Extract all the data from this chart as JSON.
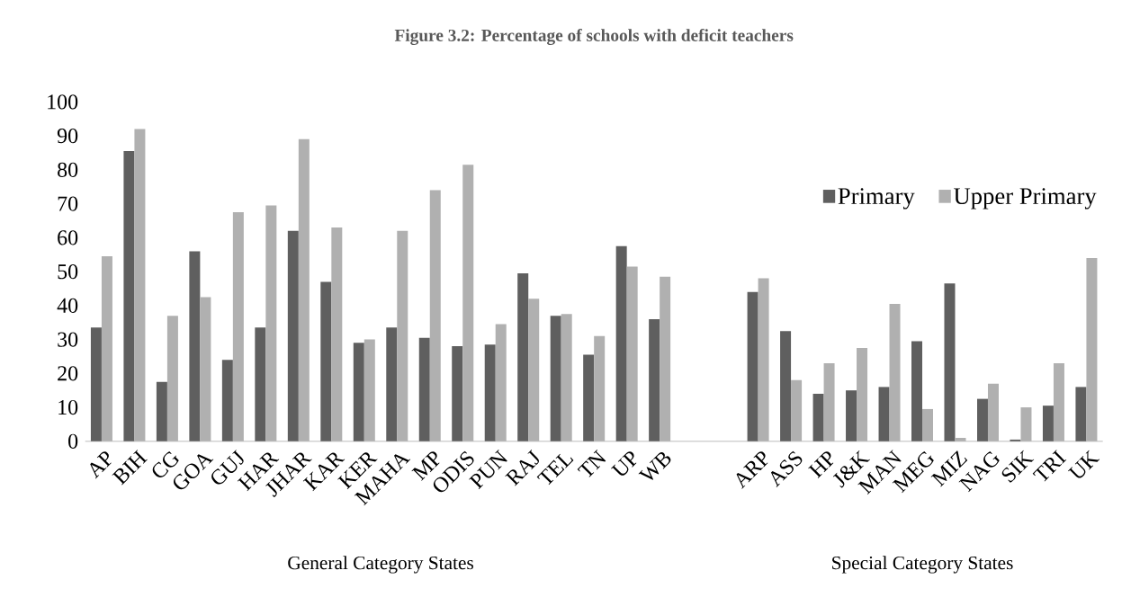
{
  "chart_data": {
    "type": "bar",
    "title": "Figure 3.2: Percentage of schools with deficit teachers",
    "categories": [
      "AP",
      "BIH",
      "CG",
      "GOA",
      "GUJ",
      "HAR",
      "JHAR",
      "KAR",
      "KER",
      "MAHA",
      "MP",
      "ODIS",
      "PUN",
      "RAJ",
      "TEL",
      "TN",
      "UP",
      "WB",
      null,
      null,
      "ARP",
      "ASS",
      "HP",
      "J&K",
      "MAN",
      "MEG",
      "MIZ",
      "NAG",
      "SIK",
      "TRI",
      "UK"
    ],
    "series": [
      {
        "name": "Primary",
        "color": "#5f5f5f",
        "values": [
          33.5,
          85.5,
          17.5,
          56,
          24,
          33.5,
          62,
          47,
          29,
          33.5,
          30.5,
          28,
          28.5,
          49.5,
          37,
          25.5,
          57.5,
          36,
          null,
          null,
          44,
          32.5,
          14,
          15,
          16,
          29.5,
          46.5,
          12.5,
          0.5,
          10.5,
          16
        ]
      },
      {
        "name": "Upper Primary",
        "color": "#b0b0b0",
        "values": [
          54.5,
          92,
          37,
          42.5,
          67.5,
          69.5,
          89,
          63,
          30,
          62,
          74,
          81.5,
          34.5,
          42,
          37.5,
          31,
          51.5,
          48.5,
          null,
          null,
          48,
          18,
          23,
          27.5,
          40.5,
          9.5,
          1,
          17,
          10,
          23,
          54
        ]
      }
    ],
    "ylim": [
      0,
      100
    ],
    "yticks": [
      0,
      10,
      20,
      30,
      40,
      50,
      60,
      70,
      80,
      90,
      100
    ],
    "legend": "right",
    "annotations": [
      "General Category States",
      "Special Category States"
    ]
  }
}
